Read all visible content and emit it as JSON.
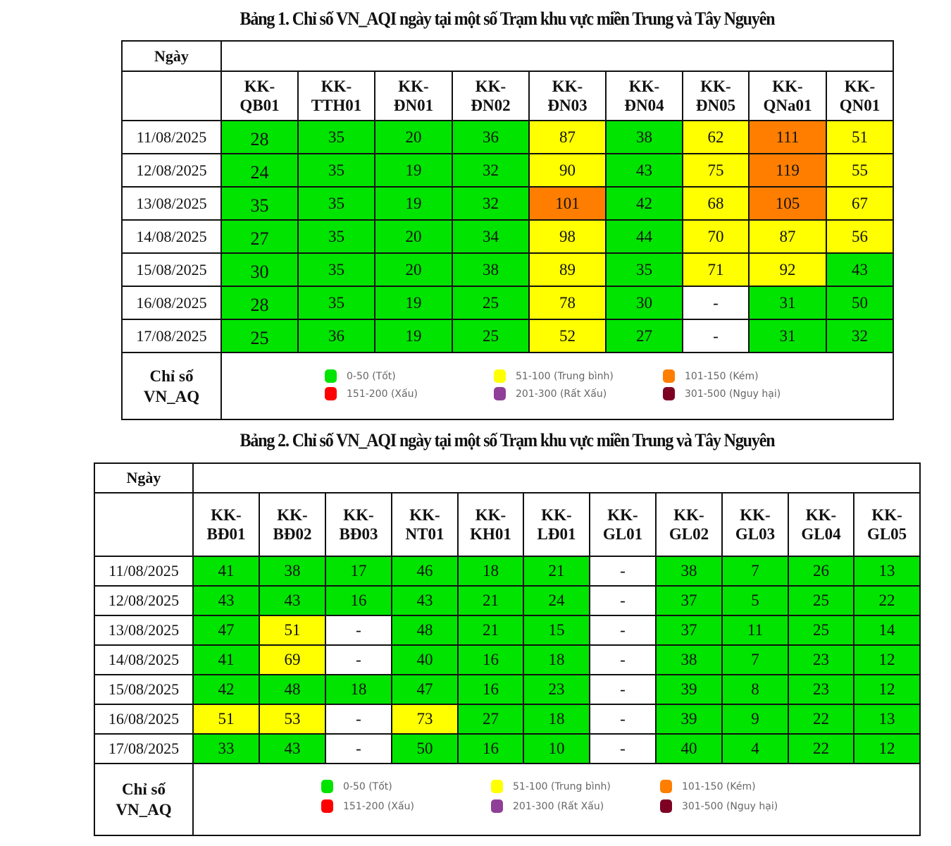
{
  "table1": {
    "title": "Bảng 1. Chỉ số VN_AQI ngày tại một số Trạm khu vực miền Trung và Tây Nguyên",
    "date_header": "Ngày",
    "stations": [
      {
        "line1": "KK-",
        "line2": "QB01"
      },
      {
        "line1": "KK-",
        "line2": "TTH01"
      },
      {
        "line1": "KK-",
        "line2": "ĐN01"
      },
      {
        "line1": "KK-",
        "line2": "ĐN02"
      },
      {
        "line1": "KK-",
        "line2": "ĐN03"
      },
      {
        "line1": "KK-",
        "line2": "ĐN04"
      },
      {
        "line1": "KK-",
        "line2": "ĐN05"
      },
      {
        "line1": "KK-",
        "line2": "QNa01"
      },
      {
        "line1": "KK-",
        "line2": "QN01"
      }
    ],
    "rows": [
      {
        "date": "11/08/2025",
        "values": [
          "28",
          "35",
          "20",
          "36",
          "87",
          "38",
          "62",
          "111",
          "51"
        ]
      },
      {
        "date": "12/08/2025",
        "values": [
          "24",
          "35",
          "19",
          "32",
          "90",
          "43",
          "75",
          "119",
          "55"
        ]
      },
      {
        "date": "13/08/2025",
        "values": [
          "35",
          "35",
          "19",
          "32",
          "101",
          "42",
          "68",
          "105",
          "67"
        ]
      },
      {
        "date": "14/08/2025",
        "values": [
          "27",
          "35",
          "20",
          "34",
          "98",
          "44",
          "70",
          "87",
          "56"
        ]
      },
      {
        "date": "15/08/2025",
        "values": [
          "30",
          "35",
          "20",
          "38",
          "89",
          "35",
          "71",
          "92",
          "43"
        ]
      },
      {
        "date": "16/08/2025",
        "values": [
          "28",
          "35",
          "19",
          "25",
          "78",
          "30",
          "-",
          "31",
          "50"
        ]
      },
      {
        "date": "17/08/2025",
        "values": [
          "25",
          "36",
          "19",
          "25",
          "52",
          "27",
          "-",
          "31",
          "32"
        ]
      }
    ],
    "legend_label_line1": "Chỉ số",
    "legend_label_line2": "VN_AQ"
  },
  "table2": {
    "title": "Bảng 2. Chỉ số VN_AQI ngày tại một số Trạm khu vực miền Trung và Tây Nguyên",
    "date_header": "Ngày",
    "stations": [
      {
        "line1": "KK-",
        "line2": "BĐ01"
      },
      {
        "line1": "KK-",
        "line2": "BĐ02"
      },
      {
        "line1": "KK-",
        "line2": "BĐ03"
      },
      {
        "line1": "KK-",
        "line2": "NT01"
      },
      {
        "line1": "KK-",
        "line2": "KH01"
      },
      {
        "line1": "KK-",
        "line2": "LĐ01"
      },
      {
        "line1": "KK-",
        "line2": "GL01"
      },
      {
        "line1": "KK-",
        "line2": "GL02"
      },
      {
        "line1": "KK-",
        "line2": "GL03"
      },
      {
        "line1": "KK-",
        "line2": "GL04"
      },
      {
        "line1": "KK-",
        "line2": "GL05"
      }
    ],
    "rows": [
      {
        "date": "11/08/2025",
        "values": [
          "41",
          "38",
          "17",
          "46",
          "18",
          "21",
          "-",
          "38",
          "7",
          "26",
          "13"
        ]
      },
      {
        "date": "12/08/2025",
        "values": [
          "43",
          "43",
          "16",
          "43",
          "21",
          "24",
          "-",
          "37",
          "5",
          "25",
          "22"
        ]
      },
      {
        "date": "13/08/2025",
        "values": [
          "47",
          "51",
          "-",
          "48",
          "21",
          "15",
          "-",
          "37",
          "11",
          "25",
          "14"
        ]
      },
      {
        "date": "14/08/2025",
        "values": [
          "41",
          "69",
          "-",
          "40",
          "16",
          "18",
          "-",
          "38",
          "7",
          "23",
          "12"
        ]
      },
      {
        "date": "15/08/2025",
        "values": [
          "42",
          "48",
          "18",
          "47",
          "16",
          "23",
          "-",
          "39",
          "8",
          "23",
          "12"
        ]
      },
      {
        "date": "16/08/2025",
        "values": [
          "51",
          "53",
          "-",
          "73",
          "27",
          "18",
          "-",
          "39",
          "9",
          "22",
          "13"
        ]
      },
      {
        "date": "17/08/2025",
        "values": [
          "33",
          "43",
          "-",
          "50",
          "16",
          "10",
          "-",
          "40",
          "4",
          "22",
          "12"
        ]
      }
    ],
    "legend_label_line1": "Chỉ số",
    "legend_label_line2": "VN_AQ"
  },
  "legend": [
    {
      "label": "0-50 (Tốt)",
      "color": "#00e400"
    },
    {
      "label": "51-100 (Trung bình)",
      "color": "#ffff00"
    },
    {
      "label": "101-150 (Kém)",
      "color": "#ff7e00"
    },
    {
      "label": "151-200 (Xấu)",
      "color": "#ff0000"
    },
    {
      "label": "201-300 (Rất Xấu)",
      "color": "#8f3f97"
    },
    {
      "label": "301-500 (Nguy hại)",
      "color": "#7e0023"
    }
  ]
}
